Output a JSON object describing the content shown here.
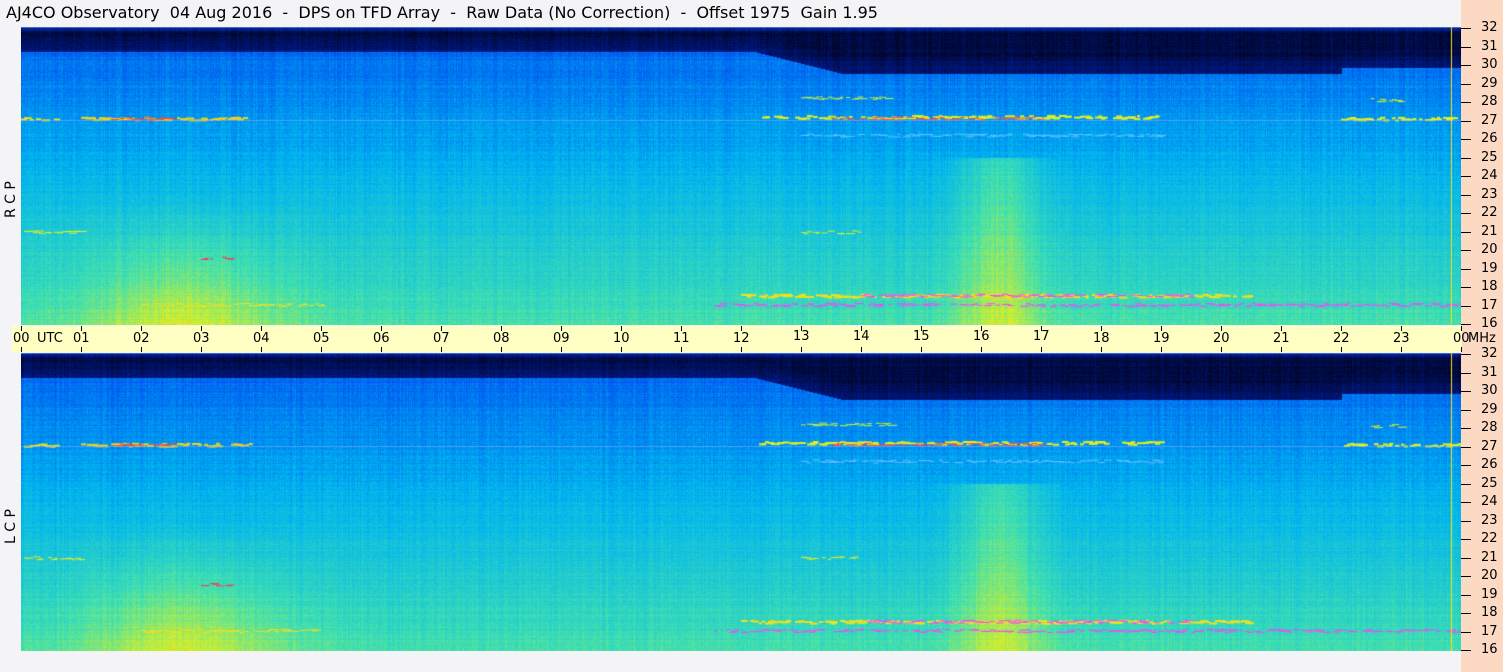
{
  "title": "AJ4CO Observatory  04 Aug 2016  -  DPS on TFD Array  -  Raw Data (No Correction)  -  Offset 1975  Gain 1.95",
  "chart_data": {
    "type": "heatmap",
    "title": "AJ4CO Observatory  04 Aug 2016  -  DPS on TFD Array  -  Raw Data (No Correction)  -  Offset 1975  Gain 1.95",
    "x_axis": {
      "unit_label": "UTC",
      "range": [
        0,
        24
      ],
      "tick_labels": [
        "00",
        "01",
        "02",
        "03",
        "04",
        "05",
        "06",
        "07",
        "08",
        "09",
        "10",
        "11",
        "12",
        "13",
        "14",
        "15",
        "16",
        "17",
        "18",
        "19",
        "20",
        "21",
        "22",
        "23",
        "00"
      ]
    },
    "y_axis": {
      "unit_label": "MHz",
      "range": [
        16,
        32
      ],
      "tick_labels": [
        "32",
        "31",
        "30",
        "29",
        "28",
        "27",
        "26",
        "25",
        "24",
        "23",
        "22",
        "21",
        "20",
        "19",
        "18",
        "17",
        "16"
      ]
    },
    "panels": [
      {
        "name": "R C P"
      },
      {
        "name": "L C P"
      }
    ],
    "colormap": [
      "#000010",
      "#001a8c",
      "#0050f0",
      "#00b4f0",
      "#40e0b0",
      "#e0f020",
      "#ff3030",
      "#ff30ff"
    ],
    "grid": false
  }
}
